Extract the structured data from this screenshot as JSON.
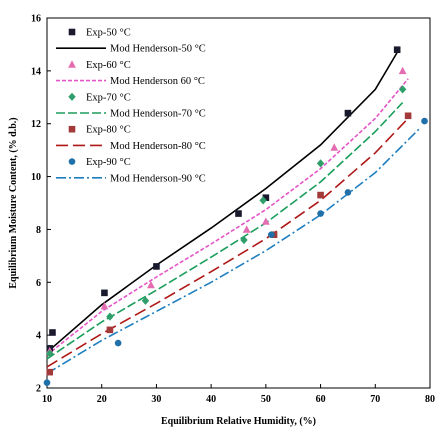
{
  "chart_data": {
    "type": "scatter",
    "xlabel": "Equilibrium Relative Humidity, (%)",
    "ylabel": "Equilibrium Moisture Content, (% d.b.)",
    "xlim": [
      10,
      80
    ],
    "ylim": [
      2,
      16
    ],
    "xticks": [
      10,
      20,
      30,
      40,
      50,
      60,
      70,
      80
    ],
    "yticks": [
      2,
      4,
      6,
      8,
      10,
      12,
      14,
      16
    ],
    "grid": false,
    "legend_position": "top-left",
    "series": [
      {
        "name": "Exp-50 °C",
        "kind": "points",
        "marker": "square",
        "color": "#1a1a2e",
        "x": [
          10.5,
          11,
          20.5,
          30,
          45,
          50,
          65,
          74
        ],
        "y": [
          3.5,
          4.1,
          5.6,
          6.6,
          8.6,
          9.2,
          12.4,
          14.8
        ]
      },
      {
        "name": "Mod Henderson-50 °C",
        "kind": "line",
        "dash": "solid",
        "color": "#000000",
        "x": [
          10,
          20,
          30,
          40,
          50,
          60,
          70,
          74
        ],
        "y": [
          3.35,
          5.15,
          6.65,
          8.05,
          9.55,
          11.2,
          13.3,
          14.7
        ]
      },
      {
        "name": "Exp-60 °C",
        "kind": "points",
        "marker": "triangle",
        "color": "#e46cb0",
        "x": [
          10.5,
          20.5,
          29,
          46.5,
          50,
          62.5,
          75
        ],
        "y": [
          3.4,
          5.1,
          5.9,
          8.0,
          8.3,
          11.1,
          14.0
        ]
      },
      {
        "name": "Mod Henderson 60 °C",
        "kind": "line",
        "dash": "4,2",
        "color": "#e455c8",
        "x": [
          10,
          20,
          30,
          40,
          50,
          60,
          70,
          76
        ],
        "y": [
          3.25,
          4.9,
          6.2,
          7.45,
          8.75,
          10.3,
          12.2,
          13.7
        ]
      },
      {
        "name": "Exp-70 °C",
        "kind": "points",
        "marker": "diamond",
        "color": "#2f9e6b",
        "x": [
          10.5,
          21.5,
          28,
          46,
          49.5,
          60,
          75
        ],
        "y": [
          3.3,
          4.7,
          5.3,
          7.6,
          9.1,
          10.5,
          13.3
        ]
      },
      {
        "name": "Mod Henderson-70 °C",
        "kind": "line",
        "dash": "9,3",
        "color": "#1a9e5c",
        "x": [
          10,
          20,
          30,
          40,
          50,
          60,
          70,
          75
        ],
        "y": [
          3.1,
          4.5,
          5.7,
          6.95,
          8.25,
          9.8,
          11.7,
          12.8
        ]
      },
      {
        "name": "Exp-80 °C",
        "kind": "points",
        "marker": "square",
        "color": "#a33a3a",
        "x": [
          10.5,
          21.5,
          51.5,
          60,
          76
        ],
        "y": [
          2.6,
          4.2,
          7.8,
          9.3,
          12.3
        ]
      },
      {
        "name": "Mod Henderson-80 °C",
        "kind": "line",
        "dash": "12,5",
        "color": "#b01818",
        "x": [
          10,
          20,
          30,
          40,
          50,
          60,
          70,
          76
        ],
        "y": [
          2.8,
          4.05,
          5.2,
          6.4,
          7.65,
          9.1,
          10.9,
          12.2
        ]
      },
      {
        "name": "Exp-90 °C",
        "kind": "points",
        "marker": "circle",
        "color": "#1f6fa8",
        "x": [
          10,
          23,
          51,
          60,
          65,
          79
        ],
        "y": [
          2.2,
          3.7,
          7.8,
          8.6,
          9.4,
          12.1
        ]
      },
      {
        "name": "Mod Henderson-90 °C",
        "kind": "line",
        "dash": "10,3,2,3",
        "color": "#1f7fc0",
        "x": [
          10,
          20,
          30,
          40,
          50,
          60,
          70,
          78
        ],
        "y": [
          2.55,
          3.8,
          4.9,
          6.0,
          7.2,
          8.55,
          10.15,
          11.8
        ]
      }
    ]
  }
}
